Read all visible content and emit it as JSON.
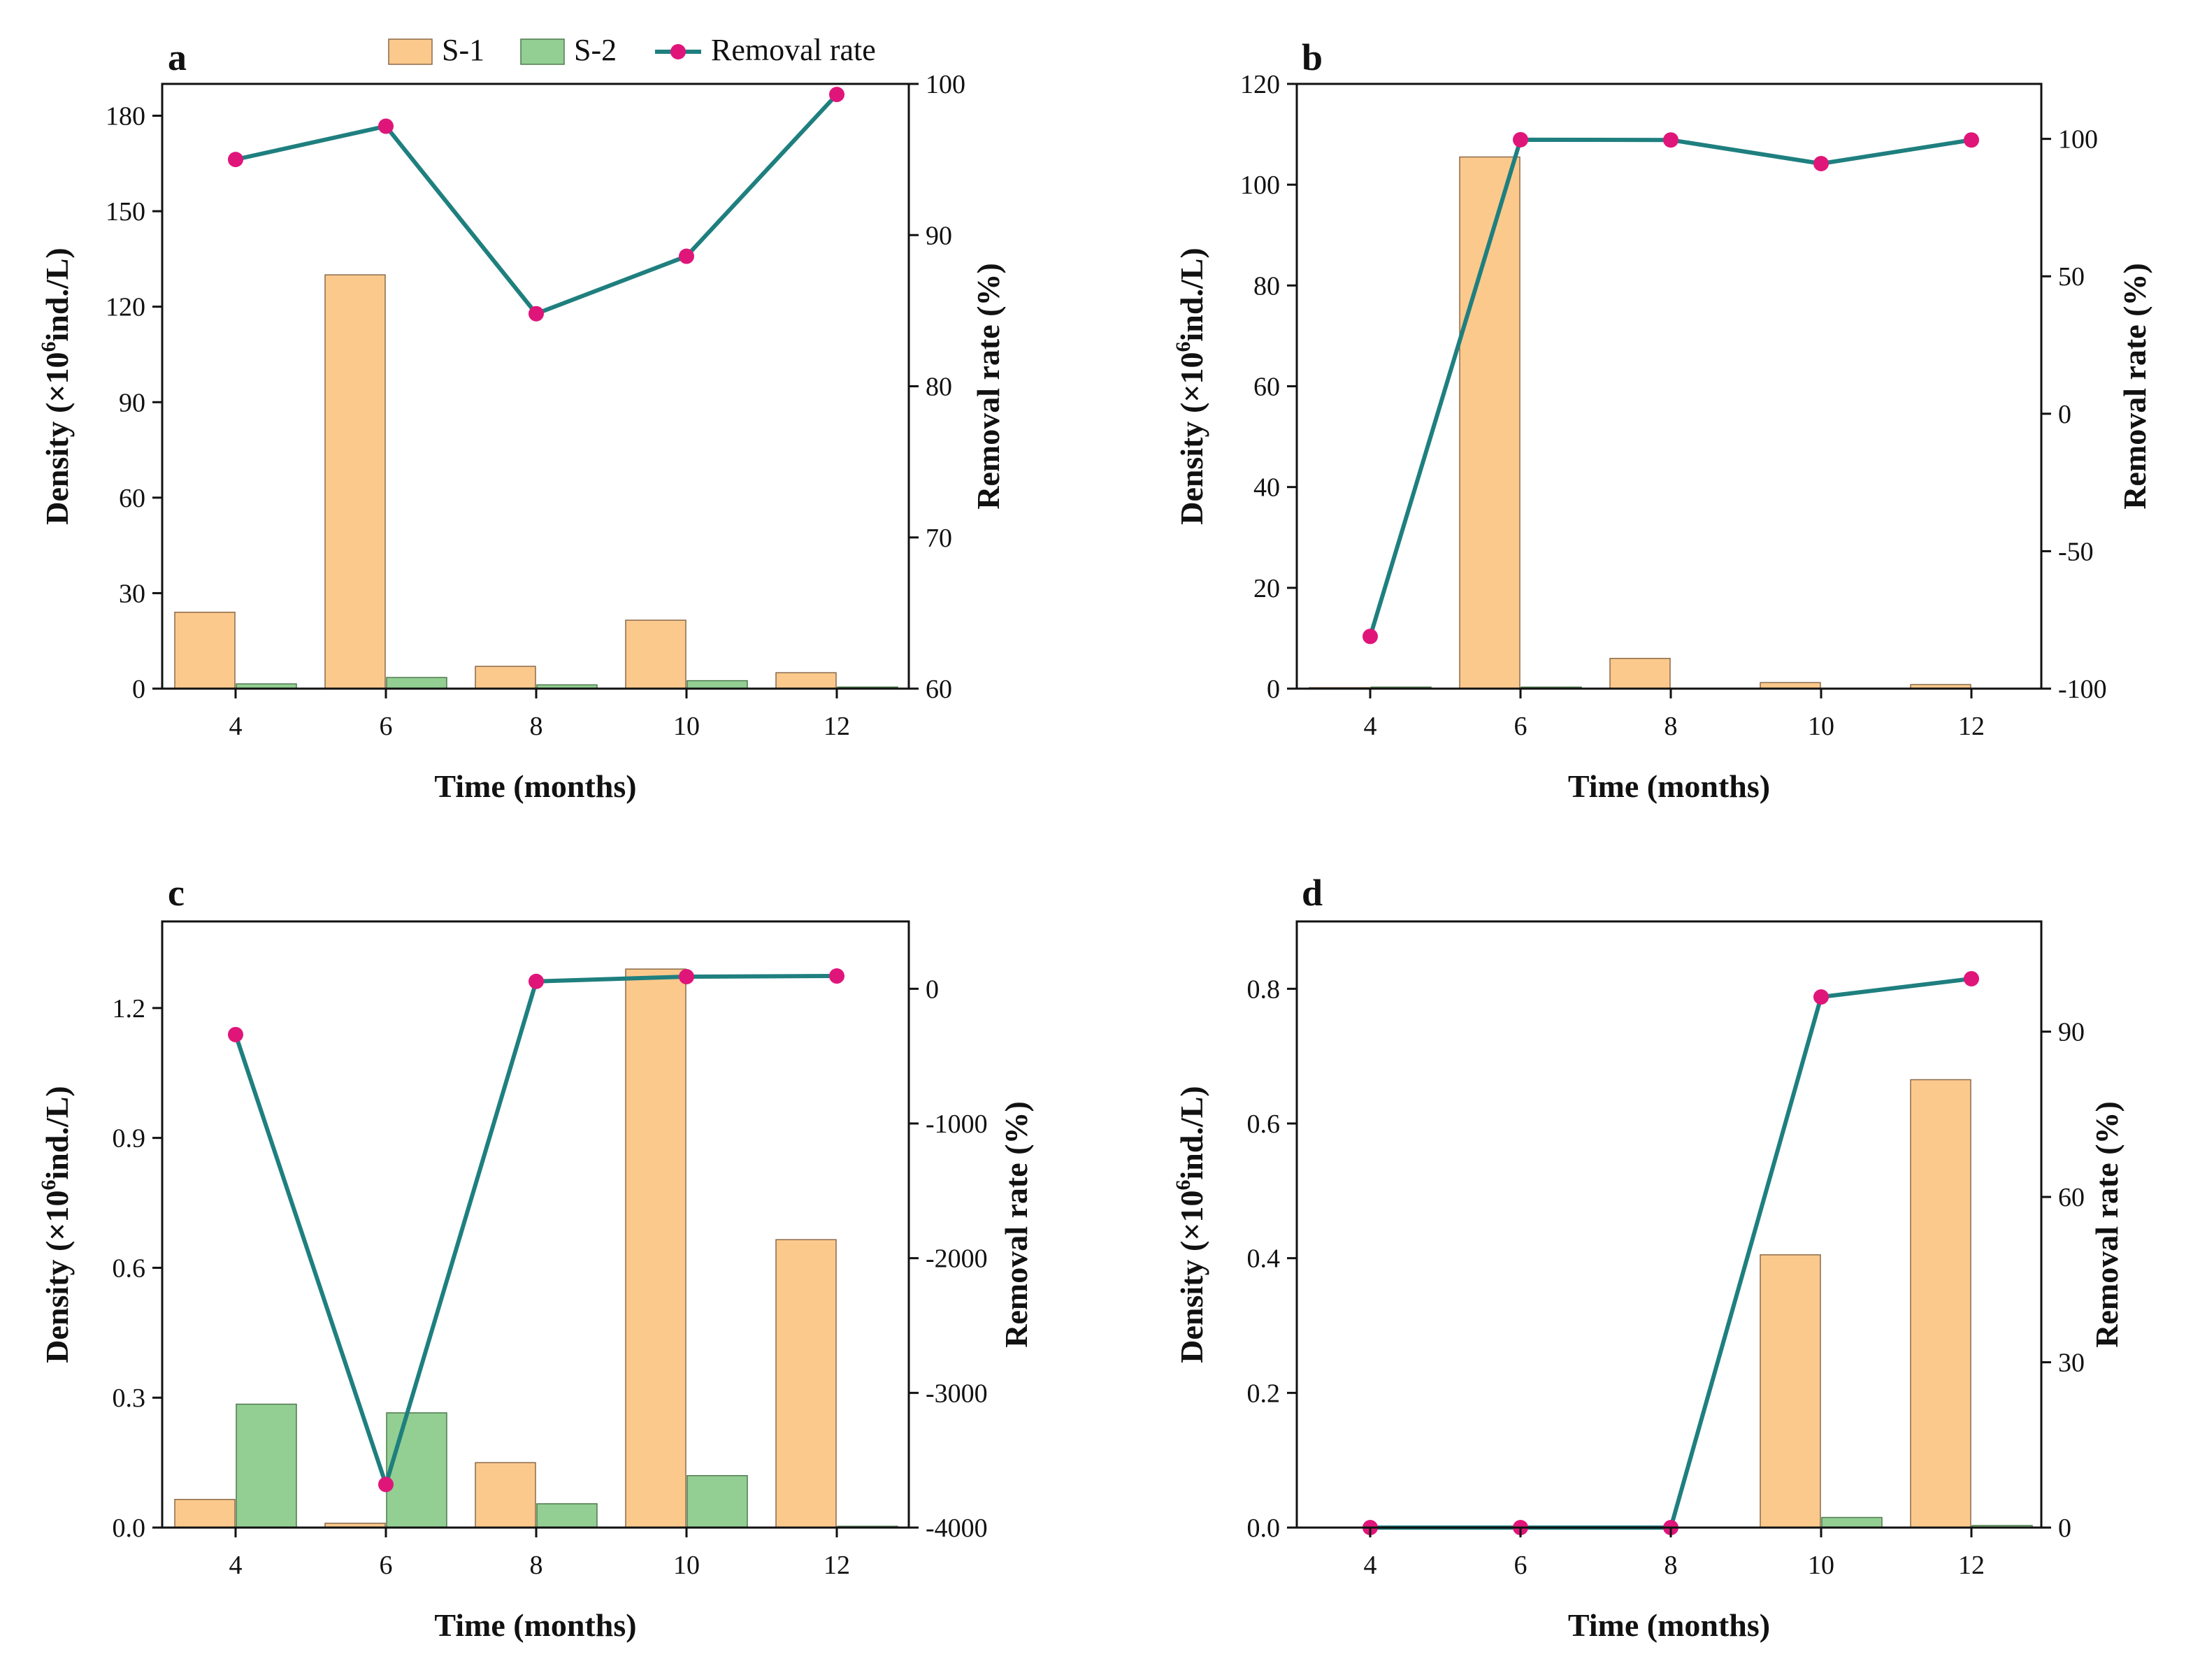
{
  "colors": {
    "s1": "#fcc98d",
    "s1_stroke": "#8b6a4a",
    "s2": "#93cf93",
    "s2_stroke": "#4e7a4e",
    "line": "#1f7f7f",
    "marker": "#e0157a",
    "axis": "#111111"
  },
  "legend": {
    "items": [
      {
        "label": "S-1",
        "kind": "bar",
        "series": "s1"
      },
      {
        "label": "S-2",
        "kind": "bar",
        "series": "s2"
      },
      {
        "label": "Removal rate",
        "kind": "line",
        "series": "rate"
      }
    ]
  },
  "chart_data": [
    {
      "panel": "a",
      "type": "bar",
      "categories": [
        "4",
        "6",
        "8",
        "10",
        "12"
      ],
      "xlabel": "Time (months)",
      "ylabel": "Density (×10⁶ind./L)",
      "ylabel_parts": [
        "Density (×10",
        "6",
        "ind./L)"
      ],
      "y2label": "Removal rate (%)",
      "ylim": [
        0,
        190
      ],
      "yticks": [
        "0",
        "30",
        "60",
        "90",
        "120",
        "150",
        "180"
      ],
      "y2lim": [
        60,
        100
      ],
      "y2ticks": [
        "60",
        "70",
        "80",
        "90",
        "100"
      ],
      "series": [
        {
          "name": "S-1",
          "values": [
            24,
            130,
            7,
            21.5,
            5
          ]
        },
        {
          "name": "S-2",
          "values": [
            1.5,
            3.5,
            1.2,
            2.5,
            0.5
          ]
        },
        {
          "name": "Removal rate",
          "axis": "right",
          "values": [
            95,
            97.2,
            84.8,
            88.6,
            99.3
          ]
        }
      ]
    },
    {
      "panel": "b",
      "type": "bar",
      "categories": [
        "4",
        "6",
        "8",
        "10",
        "12"
      ],
      "xlabel": "Time (months)",
      "ylabel": "Density (×10⁶ind./L)",
      "ylabel_parts": [
        "Density (×10",
        "6",
        "ind./L)"
      ],
      "y2label": "Removal rate (%)",
      "ylim": [
        0,
        120
      ],
      "yticks": [
        "0",
        "20",
        "40",
        "60",
        "80",
        "100",
        "120"
      ],
      "y2lim": [
        -100,
        120
      ],
      "y2ticks": [
        "-100",
        "-50",
        "0",
        "50",
        "100"
      ],
      "series": [
        {
          "name": "S-1",
          "values": [
            0.2,
            105.5,
            6,
            1.2,
            0.8
          ]
        },
        {
          "name": "S-2",
          "values": [
            0.3,
            0.3,
            0,
            0,
            0
          ]
        },
        {
          "name": "Removal rate",
          "axis": "right",
          "values": [
            -81,
            99.7,
            99.6,
            91,
            99.6
          ]
        }
      ]
    },
    {
      "panel": "c",
      "type": "bar",
      "categories": [
        "4",
        "6",
        "8",
        "10",
        "12"
      ],
      "xlabel": "Time (months)",
      "ylabel": "Density (×10⁶ind./L)",
      "ylabel_parts": [
        "Density (×10",
        "6",
        "ind./L)"
      ],
      "y2label": "Removal rate (%)",
      "ylim": [
        0,
        1.4
      ],
      "yticks": [
        "0.0",
        "0.3",
        "0.6",
        "0.9",
        "1.2"
      ],
      "y2lim": [
        -4000,
        500
      ],
      "y2ticks": [
        "-4000",
        "-3000",
        "-2000",
        "-1000",
        "0"
      ],
      "series": [
        {
          "name": "S-1",
          "values": [
            0.065,
            0.01,
            0.15,
            1.29,
            0.665
          ]
        },
        {
          "name": "S-2",
          "values": [
            0.285,
            0.265,
            0.055,
            0.12,
            0.003
          ]
        },
        {
          "name": "Removal rate",
          "axis": "right",
          "values": [
            -340,
            -3680,
            55,
            90,
            95
          ]
        }
      ]
    },
    {
      "panel": "d",
      "type": "bar",
      "categories": [
        "4",
        "6",
        "8",
        "10",
        "12"
      ],
      "xlabel": "Time (months)",
      "ylabel": "Density (×10⁶ind./L)",
      "ylabel_parts": [
        "Density (×10",
        "6",
        "ind./L)"
      ],
      "y2label": "Removal rate (%)",
      "ylim": [
        0,
        0.9
      ],
      "yticks": [
        "0.0",
        "0.2",
        "0.4",
        "0.6",
        "0.8"
      ],
      "y2lim": [
        0,
        110
      ],
      "y2ticks": [
        "0",
        "30",
        "60",
        "90"
      ],
      "series": [
        {
          "name": "S-1",
          "values": [
            0,
            0,
            0,
            0.405,
            0.665
          ]
        },
        {
          "name": "S-2",
          "values": [
            0,
            0,
            0,
            0.015,
            0.003
          ]
        },
        {
          "name": "Removal rate",
          "axis": "right",
          "values": [
            0,
            0,
            0,
            96.3,
            99.6
          ]
        }
      ]
    }
  ]
}
